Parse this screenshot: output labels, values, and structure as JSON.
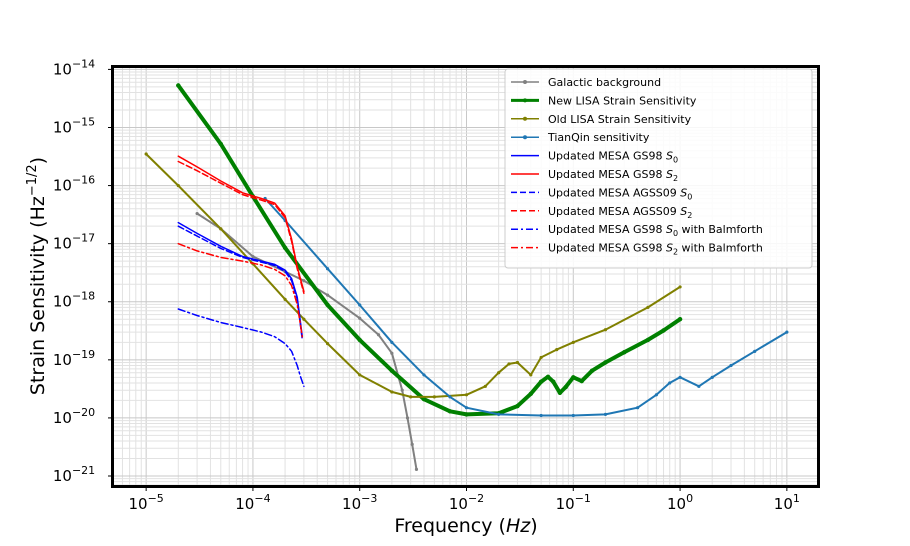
{
  "chart_data": {
    "type": "line",
    "xscale": "log",
    "yscale": "log",
    "xlabel_main": "Frequency",
    "xlabel_unit": "Hz",
    "ylabel_main": "Strain Sensitivity",
    "ylabel_unit": "Hz",
    "ylabel_exp": "−1/2",
    "xlim": [
      5e-06,
      20
    ],
    "ylim": [
      7e-22,
      1.1e-14
    ],
    "grid": true,
    "legend_position": "top-right",
    "x_ticks": [
      {
        "base": "10",
        "exp": "−5",
        "value": 1e-05
      },
      {
        "base": "10",
        "exp": "−4",
        "value": 0.0001
      },
      {
        "base": "10",
        "exp": "−3",
        "value": 0.001
      },
      {
        "base": "10",
        "exp": "−2",
        "value": 0.01
      },
      {
        "base": "10",
        "exp": "−1",
        "value": 0.1
      },
      {
        "base": "10",
        "exp": "0",
        "value": 1
      },
      {
        "base": "10",
        "exp": "1",
        "value": 10
      }
    ],
    "y_ticks": [
      {
        "base": "10",
        "exp": "−14",
        "value": 1e-14
      },
      {
        "base": "10",
        "exp": "−15",
        "value": 1e-15
      },
      {
        "base": "10",
        "exp": "−16",
        "value": 1e-16
      },
      {
        "base": "10",
        "exp": "−17",
        "value": 1e-17
      },
      {
        "base": "10",
        "exp": "−18",
        "value": 1e-18
      },
      {
        "base": "10",
        "exp": "−19",
        "value": 1e-19
      },
      {
        "base": "10",
        "exp": "−20",
        "value": 1e-20
      },
      {
        "base": "10",
        "exp": "−21",
        "value": 1e-21
      }
    ],
    "series": [
      {
        "name": "Galactic background",
        "legend_text": "Galactic background",
        "legend_sub": "",
        "legend_suffix": "",
        "color": "#808080",
        "style": "solid",
        "width": 2,
        "marker": true,
        "x": [
          3e-05,
          5e-05,
          0.0001,
          0.0002,
          0.0003,
          0.0005,
          0.001,
          0.0015,
          0.002,
          0.0025,
          0.0028,
          0.0031,
          0.0034
        ],
        "y": [
          3.3e-17,
          1.8e-17,
          6e-18,
          3.3e-18,
          2.3e-18,
          1.3e-18,
          5.2e-19,
          2.7e-19,
          1.3e-19,
          3e-20,
          1e-20,
          3.5e-21,
          1.3e-21
        ]
      },
      {
        "name": "New LISA Strain Sensitivity",
        "legend_text": "New LISA Strain Sensitivity",
        "legend_sub": "",
        "legend_suffix": "",
        "color": "#008000",
        "style": "solid",
        "width": 4,
        "marker": true,
        "x": [
          2e-05,
          5e-05,
          0.0001,
          0.0002,
          0.0005,
          0.001,
          0.002,
          0.004,
          0.007,
          0.01,
          0.02,
          0.03,
          0.04,
          0.05,
          0.058,
          0.065,
          0.075,
          0.085,
          0.1,
          0.12,
          0.15,
          0.2,
          0.3,
          0.5,
          0.7,
          1.0
        ],
        "y": [
          5.3e-15,
          5.2e-16,
          6.5e-17,
          8.5e-18,
          8.8e-19,
          2.2e-19,
          6.5e-20,
          2.1e-20,
          1.3e-20,
          1.15e-20,
          1.2e-20,
          1.6e-20,
          2.6e-20,
          4.2e-20,
          5.1e-20,
          4.2e-20,
          2.7e-20,
          3.4e-20,
          5e-20,
          4.3e-20,
          6.5e-20,
          9e-20,
          1.35e-19,
          2.2e-19,
          3.2e-19,
          5e-19
        ]
      },
      {
        "name": "Old LISA Strain Sensitivity",
        "legend_text": "Old LISA Strain Sensitivity",
        "legend_sub": "",
        "legend_suffix": "",
        "color": "#808000",
        "style": "solid",
        "width": 2,
        "marker": true,
        "x": [
          1e-05,
          2e-05,
          5e-05,
          0.0001,
          0.0002,
          0.0003,
          0.0005,
          0.001,
          0.002,
          0.003,
          0.005,
          0.01,
          0.015,
          0.02,
          0.025,
          0.03,
          0.04,
          0.05,
          0.07,
          0.1,
          0.2,
          0.5,
          1.0
        ],
        "y": [
          3.5e-16,
          1e-16,
          1.8e-17,
          4.5e-18,
          1.1e-18,
          5e-19,
          1.9e-19,
          5.5e-20,
          2.8e-20,
          2.3e-20,
          2.3e-20,
          2.5e-20,
          3.5e-20,
          6e-20,
          8.5e-20,
          9e-20,
          5.5e-20,
          1.1e-19,
          1.5e-19,
          2e-19,
          3.3e-19,
          8e-19,
          1.8e-18
        ]
      },
      {
        "name": "TianQin sensitivity",
        "legend_text": "TianQin sensitivity",
        "legend_sub": "",
        "legend_suffix": "",
        "color": "#1f77b4",
        "style": "solid",
        "width": 2,
        "marker": true,
        "x": [
          0.00013,
          0.0002,
          0.0005,
          0.001,
          0.002,
          0.004,
          0.007,
          0.01,
          0.02,
          0.05,
          0.1,
          0.2,
          0.4,
          0.6,
          0.8,
          1.0,
          1.5,
          2.0,
          3.0,
          5.0,
          10.0
        ],
        "y": [
          6e-17,
          2.5e-17,
          3.7e-18,
          8.8e-19,
          2e-19,
          5.5e-20,
          2.3e-20,
          1.5e-20,
          1.15e-20,
          1.1e-20,
          1.1e-20,
          1.15e-20,
          1.5e-20,
          2.5e-20,
          4e-20,
          5e-20,
          3.5e-20,
          5e-20,
          8e-20,
          1.4e-19,
          3e-19
        ]
      },
      {
        "name": "Updated MESA GS98 S0",
        "legend_text": "Updated MESA GS98  ",
        "legend_sub": "0",
        "legend_suffix": "",
        "color": "#0000ff",
        "style": "solid",
        "width": 1.5,
        "marker": false,
        "x": [
          2e-05,
          3e-05,
          5e-05,
          8e-05,
          0.00012,
          0.00016,
          0.0002,
          0.00023,
          0.00026,
          0.00029
        ],
        "y": [
          2.3e-17,
          1.5e-17,
          9e-18,
          6e-18,
          5e-18,
          4.4e-18,
          3.5e-18,
          2.5e-18,
          1.2e-18,
          2.5e-19
        ]
      },
      {
        "name": "Updated MESA GS98 S2",
        "legend_text": "Updated MESA GS98  ",
        "legend_sub": "2",
        "legend_suffix": "",
        "color": "#ff0000",
        "style": "solid",
        "width": 1.5,
        "marker": false,
        "x": [
          2e-05,
          3e-05,
          5e-05,
          8e-05,
          0.00012,
          0.00016,
          0.0002,
          0.00023,
          0.00026,
          0.0003
        ],
        "y": [
          3.2e-16,
          2.1e-16,
          1.2e-16,
          7.5e-17,
          6e-17,
          5e-17,
          3e-17,
          1.2e-17,
          4e-18,
          1.5e-18
        ]
      },
      {
        "name": "Updated MESA AGSS09 S0",
        "legend_text": "Updated MESA AGSS09   ",
        "legend_sub": "0",
        "legend_suffix": "",
        "color": "#0000ff",
        "style": "dashed",
        "width": 1.5,
        "marker": false,
        "x": [
          2e-05,
          3e-05,
          5e-05,
          8e-05,
          0.00012,
          0.00016,
          0.0002,
          0.00023,
          0.00026,
          0.00029
        ],
        "y": [
          2e-17,
          1.35e-17,
          8.3e-18,
          5.8e-18,
          4.8e-18,
          4.2e-18,
          3.3e-18,
          2.3e-18,
          1.1e-18,
          2.2e-19
        ]
      },
      {
        "name": "Updated MESA AGSS09 S2",
        "legend_text": "Updated MESA AGSS09   ",
        "legend_sub": "2",
        "legend_suffix": "",
        "color": "#ff0000",
        "style": "dashed",
        "width": 1.5,
        "marker": false,
        "x": [
          2e-05,
          3e-05,
          5e-05,
          8e-05,
          0.00012,
          0.00016,
          0.0002,
          0.00023,
          0.00026,
          0.0003
        ],
        "y": [
          2.6e-16,
          1.8e-16,
          1.1e-16,
          7e-17,
          5.6e-17,
          4.7e-17,
          2.8e-17,
          1.1e-17,
          3.7e-18,
          1.4e-18
        ]
      },
      {
        "name": "Updated MESA GS98 S0 with Balmforth",
        "legend_text": "Updated MESA GS98  ",
        "legend_sub": "0",
        "legend_suffix": " with Balmforth",
        "color": "#0000ff",
        "style": "dashdot",
        "width": 1.5,
        "marker": false,
        "x": [
          2e-05,
          3e-05,
          5e-05,
          8e-05,
          0.00012,
          0.00016,
          0.0002,
          0.00023,
          0.00026,
          0.00028,
          0.0003
        ],
        "y": [
          7.5e-19,
          5.8e-19,
          4.4e-19,
          3.6e-19,
          3e-19,
          2.5e-19,
          1.9e-19,
          1.4e-19,
          8e-20,
          5e-20,
          3.5e-20
        ]
      },
      {
        "name": "Updated MESA GS98 S2 with Balmforth",
        "legend_text": "Updated MESA GS98  ",
        "legend_sub": "2",
        "legend_suffix": " with Balmforth",
        "color": "#ff0000",
        "style": "dashdot",
        "width": 1.5,
        "marker": false,
        "x": [
          2e-05,
          3e-05,
          5e-05,
          8e-05,
          0.00012,
          0.00016,
          0.0002,
          0.00023,
          0.00026,
          0.00029
        ],
        "y": [
          1e-17,
          7.5e-18,
          5.8e-18,
          5e-18,
          4.3e-18,
          3.6e-18,
          2.8e-18,
          1.9e-18,
          9e-19,
          2.5e-19
        ]
      }
    ]
  }
}
